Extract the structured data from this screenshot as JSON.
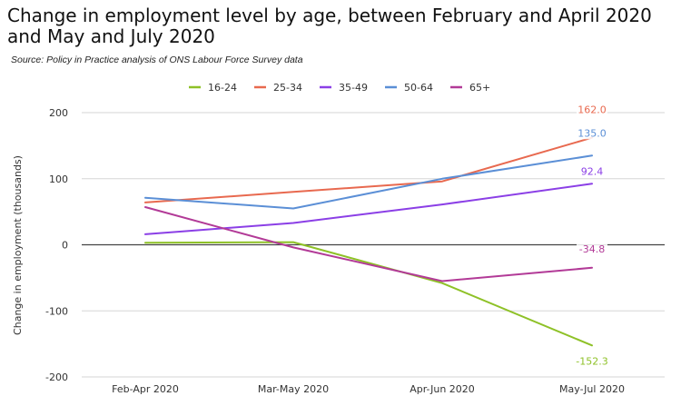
{
  "title": "Change in employment level by age, between February and April 2020 and May and July 2020",
  "source": "Source: Policy in Practice analysis of ONS Labour Force Survey data",
  "chart_data": {
    "type": "line",
    "title": "Change in employment level by age, between February and April 2020 and May and July 2020",
    "subtitle": "Source: Policy in Practice analysis of ONS Labour Force Survey data",
    "xlabel": "",
    "ylabel": "Change in employment (thousands)",
    "categories": [
      "Feb-Apr 2020",
      "Mar-May 2020",
      "Apr-Jun 2020",
      "May-Jul 2020"
    ],
    "yticks": [
      "200",
      "100",
      "0",
      "-100",
      "-200"
    ],
    "ylim": [
      -200,
      200
    ],
    "grid": true,
    "legend_position": "top",
    "series": [
      {
        "name": "16-24",
        "color": "#8ec127",
        "values": [
          3,
          4,
          -58,
          -152.3
        ],
        "end_label": "-152.3"
      },
      {
        "name": "25-34",
        "color": "#e8694f",
        "values": [
          64,
          80,
          96,
          162.0
        ],
        "end_label": "162.0"
      },
      {
        "name": "35-49",
        "color": "#8b3fe6",
        "values": [
          16,
          33,
          61,
          92.4
        ],
        "end_label": "92.4"
      },
      {
        "name": "50-64",
        "color": "#5b8fd6",
        "values": [
          71,
          55,
          100,
          135.0
        ],
        "end_label": "135.0"
      },
      {
        "name": "65+",
        "color": "#b23a97",
        "values": [
          57,
          -4,
          -55,
          -34.8
        ],
        "end_label": "-34.8"
      }
    ]
  }
}
